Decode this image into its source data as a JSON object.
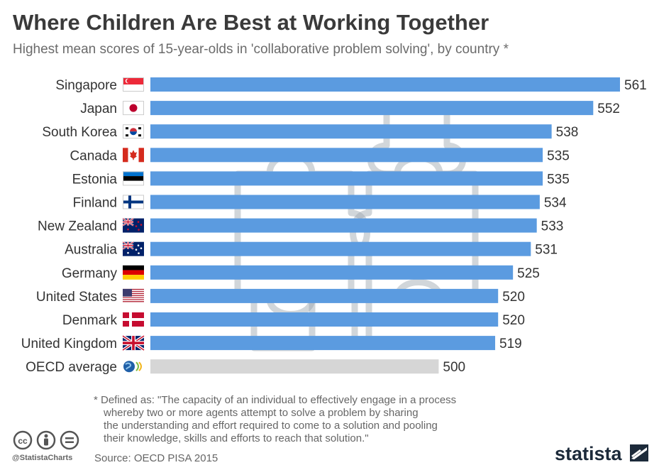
{
  "title": "Where Children Are Best at Working Together",
  "subtitle": "Highest mean scores of 15-year-olds in 'collaborative problem solving', by country *",
  "chart_data": {
    "type": "bar",
    "orientation": "horizontal",
    "categories": [
      "Singapore",
      "Japan",
      "South Korea",
      "Canada",
      "Estonia",
      "Finland",
      "New Zealand",
      "Australia",
      "Germany",
      "United States",
      "Denmark",
      "United Kingdom",
      "OECD average"
    ],
    "values": [
      561,
      552,
      538,
      535,
      535,
      534,
      533,
      531,
      525,
      520,
      520,
      519,
      500
    ],
    "flags": [
      "flag-singapore-icon",
      "flag-japan-icon",
      "flag-south-korea-icon",
      "flag-canada-icon",
      "flag-estonia-icon",
      "flag-finland-icon",
      "flag-new-zealand-icon",
      "flag-australia-icon",
      "flag-germany-icon",
      "flag-united-states-icon",
      "flag-denmark-icon",
      "flag-united-kingdom-icon",
      "oecd-logo-icon"
    ],
    "bar_color": "#5b9be0",
    "average_bar_color": "#d6d6d6",
    "grid": false
  },
  "footnote": [
    "* Defined as: \"The capacity of an individual to effectively engage in a process",
    "whereby two or more agents attempt to solve a problem by sharing",
    "the understanding and effort required to come to a solution and pooling",
    "their knowledge, skills and efforts to reach that solution.\""
  ],
  "source": "Source: OECD PISA 2015",
  "handle": "@StatistaCharts",
  "brand": "statista"
}
